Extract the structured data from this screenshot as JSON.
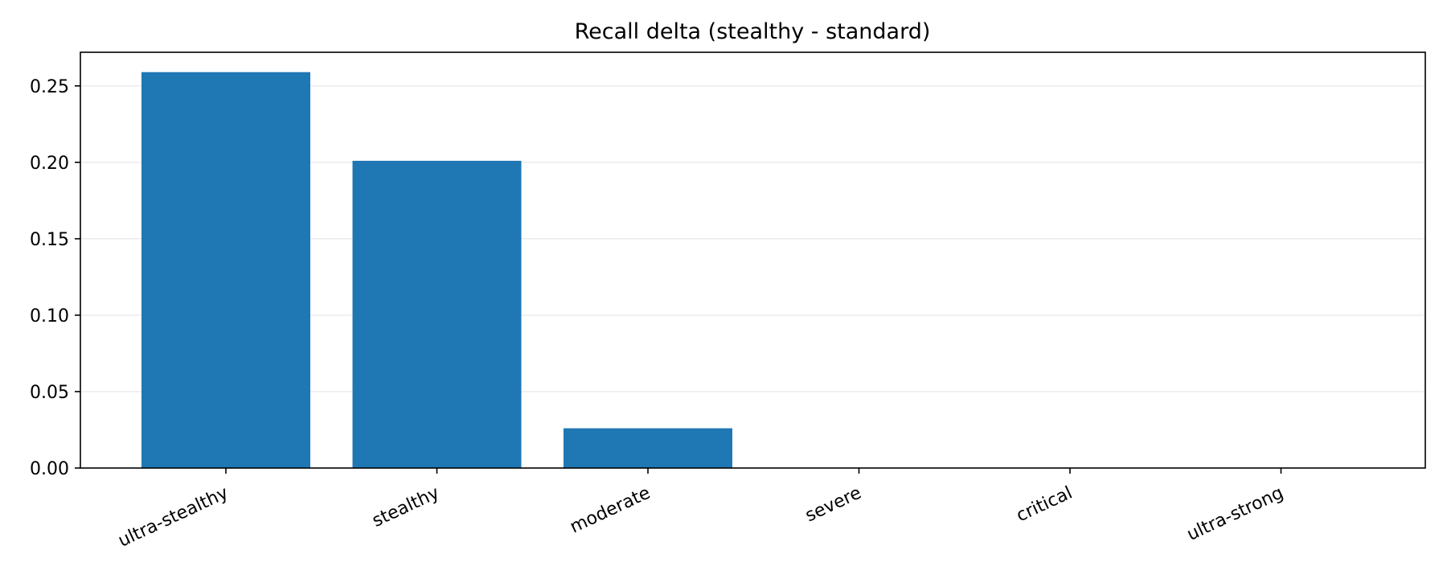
{
  "chart_data": {
    "type": "bar",
    "title": "Recall delta (stealthy - standard)",
    "xlabel": "",
    "ylabel": "",
    "categories": [
      "ultra-stealthy",
      "stealthy",
      "moderate",
      "severe",
      "critical",
      "ultra-strong"
    ],
    "values": [
      0.259,
      0.201,
      0.026,
      0.0,
      0.0,
      0.0
    ],
    "ylim": [
      0.0,
      0.272
    ],
    "yticks": [
      0.0,
      0.05,
      0.1,
      0.15,
      0.2,
      0.25
    ],
    "ytick_labels": [
      "0.00",
      "0.05",
      "0.10",
      "0.15",
      "0.20",
      "0.25"
    ],
    "grid": "horizontal",
    "legend": "none",
    "bar_color": "#1f77b4",
    "grid_color": "#e6e6e6"
  }
}
